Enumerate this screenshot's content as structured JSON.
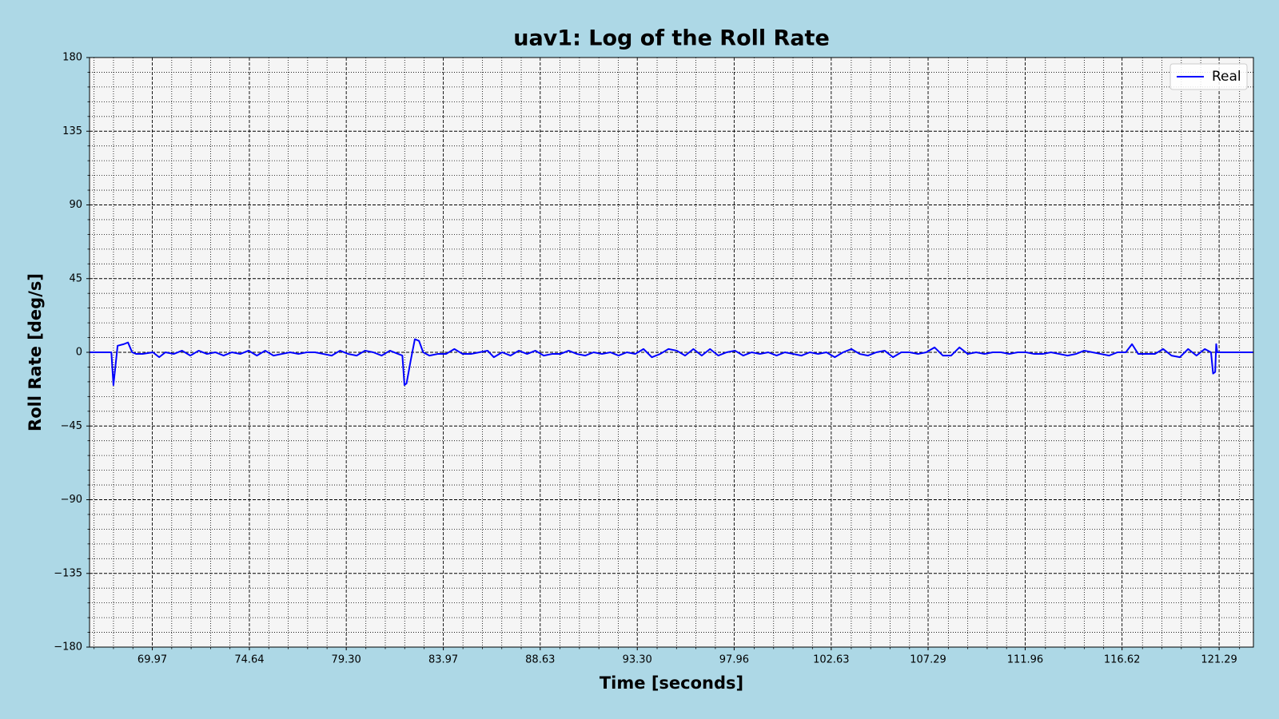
{
  "chart_data": {
    "type": "line",
    "title": "uav1: Log of the Roll Rate",
    "xlabel": "Time [seconds]",
    "ylabel": "Roll Rate [deg/s]",
    "x": [
      66.95,
      67.9,
      68.0,
      68.1,
      68.3,
      68.6,
      68.8,
      69.0,
      69.2,
      69.5,
      70.0,
      70.3,
      70.6,
      71.0,
      71.4,
      71.8,
      72.2,
      72.6,
      73.0,
      73.4,
      73.8,
      74.2,
      74.6,
      75.0,
      75.4,
      75.8,
      76.2,
      76.6,
      77.0,
      77.4,
      77.8,
      78.2,
      78.6,
      79.0,
      79.4,
      79.8,
      80.2,
      80.6,
      81.0,
      81.4,
      81.8,
      82.0,
      82.1,
      82.2,
      82.4,
      82.6,
      82.8,
      83.0,
      83.3,
      83.7,
      84.1,
      84.5,
      84.9,
      85.3,
      85.7,
      86.1,
      86.4,
      86.8,
      87.2,
      87.6,
      88.0,
      88.4,
      88.8,
      89.2,
      89.6,
      90.0,
      90.4,
      90.8,
      91.2,
      91.6,
      92.0,
      92.4,
      92.8,
      93.2,
      93.6,
      94.0,
      94.4,
      94.8,
      95.2,
      95.6,
      96.0,
      96.4,
      96.8,
      97.2,
      97.6,
      98.0,
      98.4,
      98.8,
      99.2,
      99.6,
      100.0,
      100.4,
      100.8,
      101.2,
      101.6,
      102.0,
      102.4,
      102.8,
      103.2,
      103.6,
      104.0,
      104.4,
      104.8,
      105.2,
      105.6,
      106.0,
      106.4,
      106.8,
      107.2,
      107.6,
      108.0,
      108.4,
      108.8,
      109.2,
      109.6,
      110.0,
      110.4,
      110.8,
      111.2,
      111.6,
      112.0,
      112.4,
      112.8,
      113.2,
      113.6,
      114.0,
      114.4,
      114.8,
      115.2,
      115.6,
      116.0,
      116.4,
      116.8,
      117.1,
      117.2,
      117.4,
      117.8,
      118.2,
      118.6,
      119.0,
      119.4,
      119.8,
      120.2,
      120.6,
      120.9,
      121.0,
      121.1,
      121.15,
      121.2,
      121.3,
      122.94
    ],
    "series": [
      {
        "name": "Real",
        "color": "#0000ff",
        "values": [
          0,
          0,
          0,
          -20,
          4,
          5,
          6,
          0,
          -1,
          -1,
          0,
          -3,
          0,
          -1,
          1,
          -2,
          1,
          -1,
          0,
          -2,
          0,
          -1,
          1,
          -2,
          1,
          -2,
          -1,
          0,
          -1,
          0,
          0,
          -1,
          -2,
          1,
          -1,
          -2,
          1,
          0,
          -2,
          1,
          -1,
          -2,
          -20,
          -19,
          -5,
          8,
          7,
          0,
          -2,
          -1,
          -1,
          2,
          -1,
          -1,
          0,
          1,
          -3,
          0,
          -2,
          1,
          -1,
          1,
          -2,
          -1,
          -1,
          1,
          -1,
          -2,
          0,
          -1,
          0,
          -2,
          0,
          -1,
          2,
          -3,
          -1,
          2,
          1,
          -2,
          2,
          -2,
          2,
          -2,
          0,
          1,
          -2,
          0,
          -1,
          0,
          -2,
          0,
          -1,
          -2,
          0,
          -1,
          0,
          -3,
          0,
          2,
          -1,
          -2,
          0,
          1,
          -3,
          0,
          0,
          -1,
          0,
          3,
          -2,
          -2,
          3,
          -1,
          0,
          -1,
          0,
          0,
          -1,
          0,
          0,
          -1,
          -1,
          0,
          -1,
          -2,
          -1,
          1,
          0,
          -1,
          -2,
          0,
          0,
          5,
          3,
          -1,
          -1,
          -1,
          2,
          -2,
          -3,
          2,
          -2,
          2,
          0,
          -13,
          -12,
          5,
          0,
          0,
          0
        ]
      }
    ],
    "xlim": [
      66.95,
      122.94
    ],
    "xticks": [
      69.97,
      74.64,
      {
        "value": 79.3,
        "label": "79.30"
      },
      83.97,
      88.63,
      {
        "value": 93.3,
        "label": "93.30"
      },
      97.96,
      102.63,
      107.29,
      111.96,
      116.62,
      121.29
    ],
    "ylim": [
      -180,
      180
    ],
    "yticks": [
      {
        "value": -180,
        "label": "−180"
      },
      {
        "value": -135,
        "label": "−135"
      },
      {
        "value": -90,
        "label": "−90"
      },
      {
        "value": -45,
        "label": "−45"
      },
      0,
      45,
      90,
      135,
      180
    ],
    "grid": true,
    "minor_grid": true,
    "legend": "upper right"
  }
}
